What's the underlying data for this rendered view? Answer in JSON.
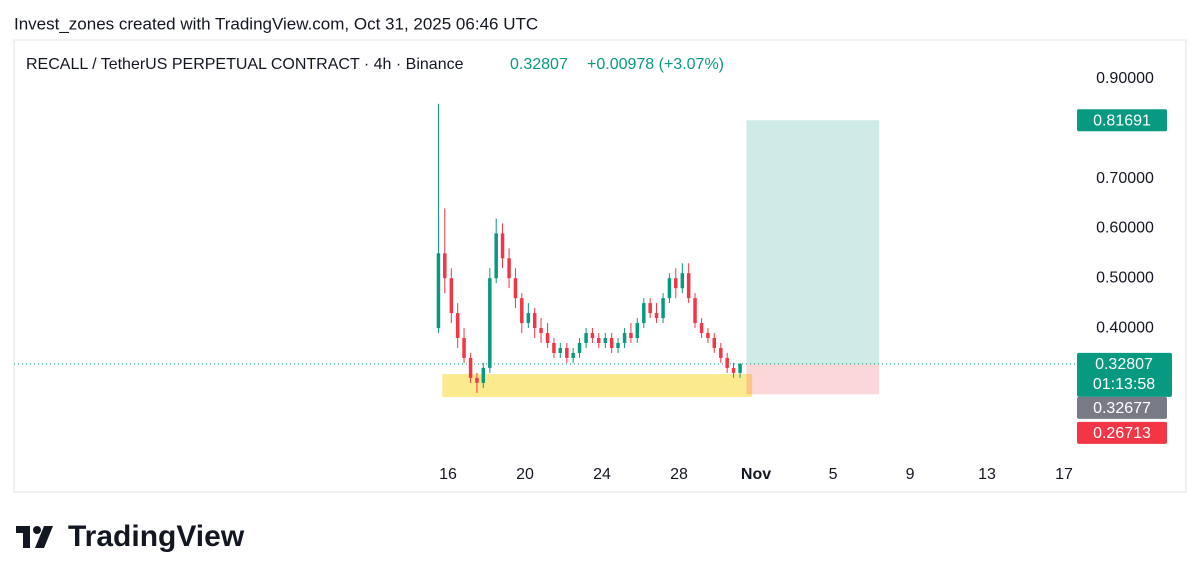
{
  "header": {
    "attribution": "Invest_zones created with TradingView.com, Oct 31, 2025 06:46 UTC",
    "symbol": "RECALL / TetherUS PERPETUAL CONTRACT · 4h · Binance",
    "change": "+0.00978 (+3.07%)"
  },
  "chart_data": {
    "type": "candlestick",
    "x": [
      15.5,
      15.83,
      16.17,
      16.5,
      16.83,
      17.17,
      17.5,
      17.83,
      18.17,
      18.5,
      18.83,
      19.17,
      19.5,
      19.83,
      20.17,
      20.5,
      20.83,
      21.17,
      21.5,
      21.83,
      22.17,
      22.5,
      22.83,
      23.17,
      23.5,
      23.83,
      24.17,
      24.5,
      24.83,
      25.17,
      25.5,
      25.83,
      26.17,
      26.5,
      26.83,
      27.17,
      27.5,
      27.83,
      28.17,
      28.5,
      28.83,
      29.17,
      29.5,
      29.83,
      30.17,
      30.5,
      30.83,
      31.17
    ],
    "open": [
      0.4,
      0.55,
      0.5,
      0.43,
      0.38,
      0.34,
      0.3,
      0.29,
      0.32,
      0.5,
      0.59,
      0.54,
      0.5,
      0.46,
      0.41,
      0.43,
      0.4,
      0.39,
      0.37,
      0.35,
      0.36,
      0.34,
      0.35,
      0.37,
      0.39,
      0.38,
      0.37,
      0.38,
      0.36,
      0.37,
      0.39,
      0.38,
      0.41,
      0.45,
      0.43,
      0.42,
      0.46,
      0.5,
      0.48,
      0.51,
      0.46,
      0.41,
      0.39,
      0.38,
      0.36,
      0.34,
      0.32,
      0.31
    ],
    "high": [
      0.85,
      0.64,
      0.52,
      0.45,
      0.4,
      0.35,
      0.31,
      0.33,
      0.52,
      0.62,
      0.61,
      0.56,
      0.52,
      0.47,
      0.45,
      0.44,
      0.42,
      0.41,
      0.38,
      0.37,
      0.37,
      0.36,
      0.38,
      0.4,
      0.4,
      0.39,
      0.39,
      0.39,
      0.38,
      0.4,
      0.41,
      0.42,
      0.46,
      0.46,
      0.45,
      0.47,
      0.51,
      0.52,
      0.53,
      0.53,
      0.47,
      0.42,
      0.4,
      0.39,
      0.37,
      0.35,
      0.33,
      0.33
    ],
    "low": [
      0.39,
      0.47,
      0.41,
      0.36,
      0.33,
      0.29,
      0.27,
      0.28,
      0.31,
      0.49,
      0.52,
      0.48,
      0.44,
      0.39,
      0.4,
      0.38,
      0.37,
      0.36,
      0.34,
      0.34,
      0.33,
      0.33,
      0.34,
      0.36,
      0.37,
      0.36,
      0.36,
      0.35,
      0.35,
      0.36,
      0.37,
      0.37,
      0.4,
      0.42,
      0.41,
      0.41,
      0.45,
      0.46,
      0.47,
      0.45,
      0.4,
      0.38,
      0.37,
      0.35,
      0.33,
      0.31,
      0.3,
      0.3
    ],
    "close": [
      0.55,
      0.5,
      0.43,
      0.38,
      0.34,
      0.3,
      0.29,
      0.32,
      0.5,
      0.59,
      0.54,
      0.5,
      0.46,
      0.41,
      0.43,
      0.4,
      0.39,
      0.37,
      0.35,
      0.36,
      0.34,
      0.35,
      0.37,
      0.39,
      0.38,
      0.37,
      0.38,
      0.36,
      0.37,
      0.39,
      0.38,
      0.41,
      0.45,
      0.43,
      0.42,
      0.46,
      0.5,
      0.48,
      0.51,
      0.46,
      0.41,
      0.39,
      0.38,
      0.36,
      0.34,
      0.32,
      0.31,
      0.32807
    ],
    "up_color": "#089981",
    "down_color": "#f23645",
    "xlim": [
      -6.55,
      48.57
    ],
    "xticks": [
      16,
      20,
      24,
      28,
      {
        "value": 32,
        "label": "Nov"
      },
      {
        "value": 36,
        "label": "5"
      },
      {
        "value": 40,
        "label": "9"
      },
      {
        "value": 44,
        "label": "13"
      },
      {
        "value": 48,
        "label": "17"
      }
    ],
    "ylim": [
      0.075,
      0.978
    ],
    "yticks": [
      {
        "value": 0.4,
        "label": "0.40000"
      },
      {
        "value": 0.5,
        "label": "0.50000"
      },
      {
        "value": 0.6,
        "label": "0.60000"
      },
      {
        "value": 0.7,
        "label": "0.70000"
      },
      {
        "value": 0.9,
        "label": "0.90000"
      }
    ],
    "last_price": 0.32807,
    "countdown": "01:13:58",
    "mark_price": 0.32677,
    "position": {
      "entry": 0.32807,
      "target": 0.81691,
      "stop": 0.26713,
      "start": 31.5,
      "end": 38.4
    },
    "zone": {
      "low": 0.2615,
      "high": 0.3076,
      "start": 15.7,
      "end": 31.8
    }
  },
  "logo": "TradingView"
}
